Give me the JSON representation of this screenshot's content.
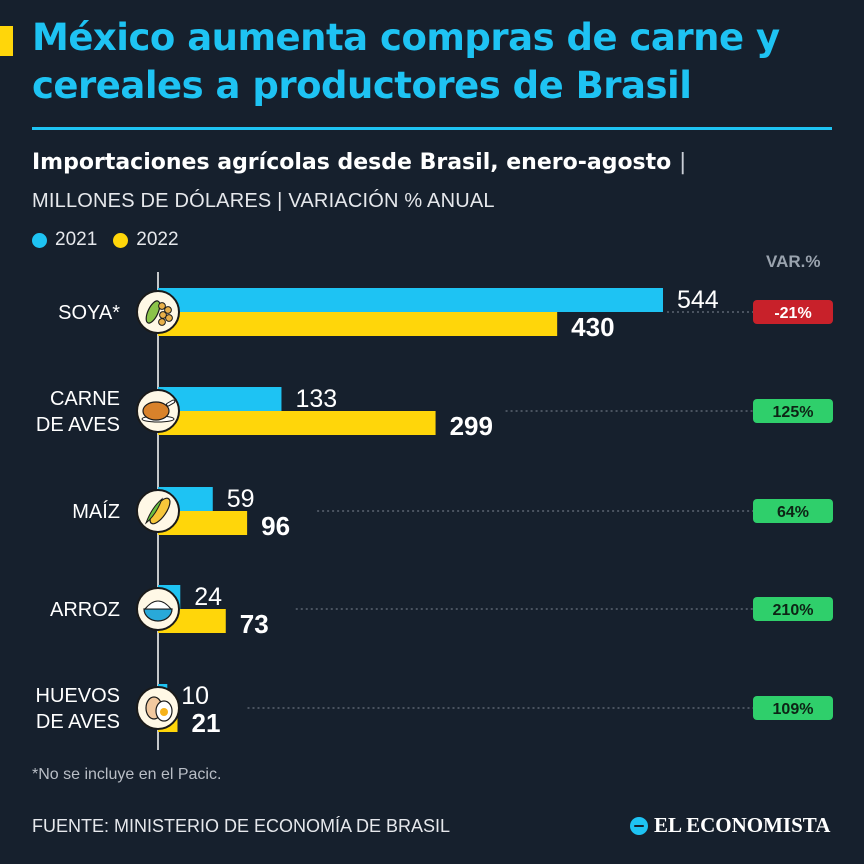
{
  "header": {
    "title": "México aumenta compras de carne y cereales a productores de Brasil",
    "subtitle": "Importaciones agrícolas desde Brasil, enero-agosto",
    "subtitle_sep": "|",
    "units": "MILLONES DE DÓLARES | VARIACIÓN % ANUAL"
  },
  "colors": {
    "s2021": "#1ec3f3",
    "s2022": "#ffd60a",
    "positive": "#2fcf6b",
    "negative": "#c8212a",
    "title": "#1ec3f3",
    "background": "#16202d"
  },
  "chart_data": {
    "type": "bar",
    "orientation": "horizontal",
    "title": "Importaciones agrícolas desde Brasil, enero-agosto",
    "units": "MILLONES DE DÓLARES",
    "categories": [
      "SOYA*",
      "CARNE DE AVES",
      "MAÍZ",
      "ARROZ",
      "HUEVOS DE AVES"
    ],
    "category_lines": [
      [
        "SOYA*"
      ],
      [
        "CARNE",
        "DE AVES"
      ],
      [
        "MAÍZ"
      ],
      [
        "ARROZ"
      ],
      [
        "HUEVOS",
        "DE AVES"
      ]
    ],
    "icons": [
      "soy-icon",
      "chicken-icon",
      "corn-icon",
      "rice-icon",
      "egg-icon"
    ],
    "series": [
      {
        "name": "2021",
        "values": [
          544,
          133,
          59,
          24,
          10
        ]
      },
      {
        "name": "2022",
        "values": [
          430,
          299,
          96,
          73,
          21
        ]
      }
    ],
    "var_header": "VAR.%",
    "var_pct": [
      "-21%",
      "125%",
      "64%",
      "210%",
      "109%"
    ],
    "xlim": [
      0,
      544
    ]
  },
  "footer": {
    "note": "*No se incluye en el Pacic.",
    "source": "FUENTE: MINISTERIO DE ECONOMÍA DE BRASIL",
    "brand": "EL ECONOMISTA"
  }
}
